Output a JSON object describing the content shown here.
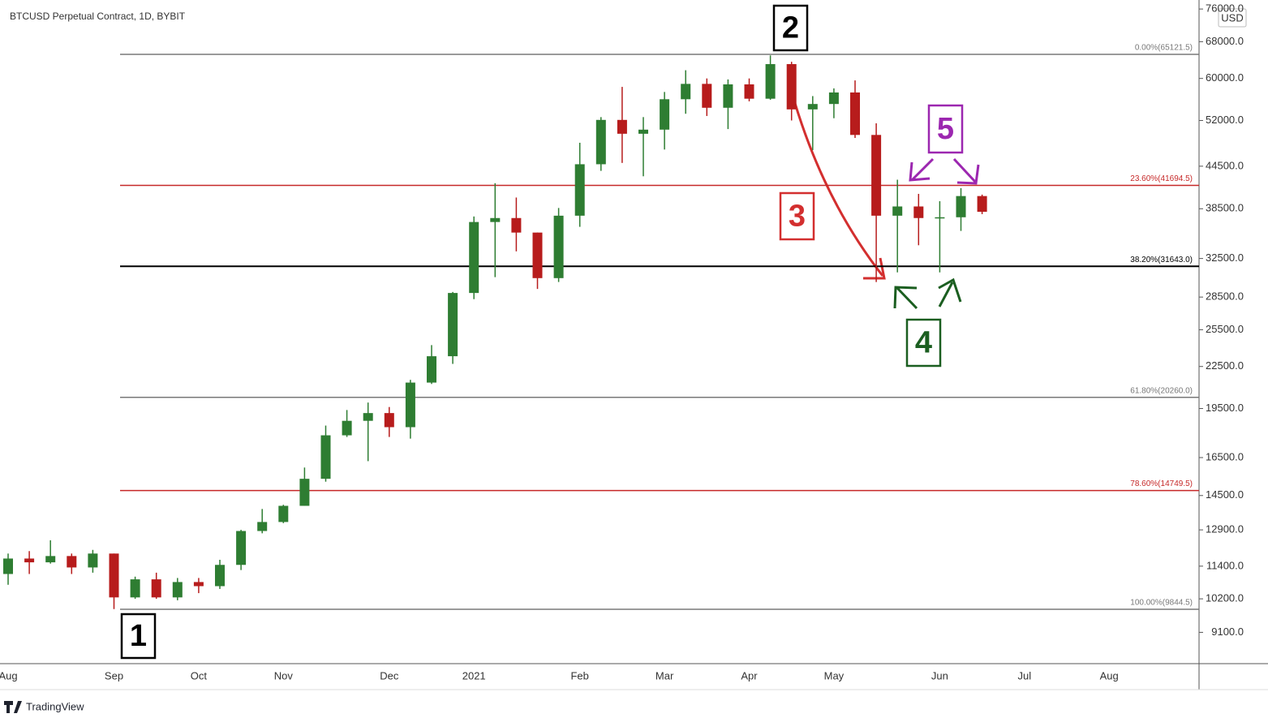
{
  "chart_data": {
    "type": "candlestick",
    "title": "BTCUSD Perpetual Contract, 1D, BYBIT",
    "unit": "USD",
    "log_scale": true,
    "grid": false,
    "up_color": "#2e7d32",
    "down_color": "#b71c1c",
    "categories": [
      "Aug",
      null,
      null,
      null,
      null,
      "Sep",
      null,
      null,
      null,
      "Oct",
      null,
      null,
      null,
      "Nov",
      null,
      null,
      null,
      null,
      "Dec",
      null,
      null,
      null,
      "2021",
      null,
      null,
      null,
      null,
      "Feb",
      null,
      null,
      null,
      "Mar",
      null,
      null,
      null,
      "Apr",
      null,
      null,
      null,
      "May",
      null,
      null,
      null,
      null,
      "Jun",
      null,
      null,
      null,
      "Jul",
      null,
      null,
      null,
      "Aug"
    ],
    "open": [
      11100,
      11700,
      11550,
      11800,
      11350,
      11900,
      10250,
      10900,
      10250,
      10800,
      10650,
      11450,
      12850,
      13250,
      14000,
      15350,
      17800,
      18700,
      19200,
      18300,
      21300,
      23300,
      28900,
      36800,
      37300,
      35500,
      30400,
      37600,
      44800,
      52100,
      49700,
      50400,
      55900,
      58900,
      54300,
      58800,
      56000,
      63000,
      54000,
      55000,
      57200,
      49500,
      37600,
      38800,
      37300,
      37400,
      40200,
      null,
      null,
      null,
      null,
      null,
      null
    ],
    "high": [
      11900,
      12000,
      12450,
      11900,
      12050,
      11900,
      11000,
      11150,
      10950,
      10950,
      11650,
      12900,
      13850,
      14050,
      15950,
      18400,
      19400,
      19900,
      19600,
      21500,
      24200,
      29000,
      37500,
      42000,
      40000,
      35500,
      38600,
      48200,
      52600,
      58300,
      52600,
      57300,
      61700,
      60000,
      59800,
      60000,
      64900,
      63500,
      56500,
      58000,
      59600,
      51500,
      42500,
      40500,
      39500,
      41300,
      40400,
      null,
      null,
      null,
      null,
      null,
      null
    ],
    "low": [
      10700,
      11100,
      11500,
      11100,
      11150,
      9850,
      10200,
      10200,
      10150,
      10400,
      10550,
      11250,
      12750,
      13200,
      14000,
      15200,
      17700,
      16300,
      17700,
      17600,
      21200,
      22700,
      28300,
      30500,
      33300,
      29300,
      30000,
      36200,
      43800,
      45000,
      43000,
      47100,
      53200,
      52800,
      50500,
      55500,
      55800,
      52000,
      47000,
      52400,
      49000,
      30000,
      31000,
      34000,
      31000,
      35700,
      37800,
      null,
      null,
      null,
      null,
      null,
      null
    ],
    "close": [
      11700,
      11550,
      11800,
      11350,
      11900,
      10250,
      10900,
      10250,
      10800,
      10650,
      11450,
      12850,
      13250,
      14000,
      15350,
      17800,
      18700,
      19200,
      18300,
      21300,
      23300,
      28900,
      36800,
      37300,
      35500,
      30400,
      37600,
      44800,
      52100,
      49700,
      50400,
      55900,
      58900,
      54300,
      58800,
      56000,
      63000,
      54000,
      55000,
      57200,
      49500,
      37600,
      38800,
      37300,
      37400,
      40200,
      38100,
      null,
      null,
      null,
      null,
      null,
      null
    ],
    "ylim": [
      8180,
      78370
    ],
    "yticks": [
      {
        "value": 76000,
        "label": "76000.0"
      },
      {
        "value": 68000,
        "label": "68000.0"
      },
      {
        "value": 60000,
        "label": "60000.0"
      },
      {
        "value": 52000,
        "label": "52000.0"
      },
      {
        "value": 44500,
        "label": "44500.0"
      },
      {
        "value": 38500,
        "label": "38500.0"
      },
      {
        "value": 32500,
        "label": "32500.0"
      },
      {
        "value": 28500,
        "label": "28500.0"
      },
      {
        "value": 25500,
        "label": "25500.0"
      },
      {
        "value": 22500,
        "label": "22500.0"
      },
      {
        "value": 19500,
        "label": "19500.0"
      },
      {
        "value": 16500,
        "label": "16500.0"
      },
      {
        "value": 14500,
        "label": "14500.0"
      },
      {
        "value": 12900,
        "label": "12900.0"
      },
      {
        "value": 11400,
        "label": "11400.0"
      },
      {
        "value": 10200,
        "label": "10200.0"
      },
      {
        "value": 9100,
        "label": "9100.0"
      }
    ],
    "fib_levels": [
      {
        "value": 65121.5,
        "label": "0.00%(65121.5)",
        "color": "#787878"
      },
      {
        "value": 41694.5,
        "label": "23.60%(41694.5)",
        "color": "#c62828"
      },
      {
        "value": 31643.0,
        "label": "38.20%(31643.0)",
        "color": "#000000"
      },
      {
        "value": 20260.0,
        "label": "61.80%(20260.0)",
        "color": "#787878"
      },
      {
        "value": 14749.5,
        "label": "78.60%(14749.5)",
        "color": "#c62828"
      },
      {
        "value": 9844.5,
        "label": "100.00%(9844.5)",
        "color": "#787878"
      }
    ],
    "annotations": [
      {
        "text": "1",
        "color": "#000000"
      },
      {
        "text": "2",
        "color": "#000000"
      },
      {
        "text": "3",
        "color": "#d32f2f"
      },
      {
        "text": "4",
        "color": "#1b5e20"
      },
      {
        "text": "5",
        "color": "#9c27b0"
      }
    ],
    "brand": "TradingView"
  }
}
